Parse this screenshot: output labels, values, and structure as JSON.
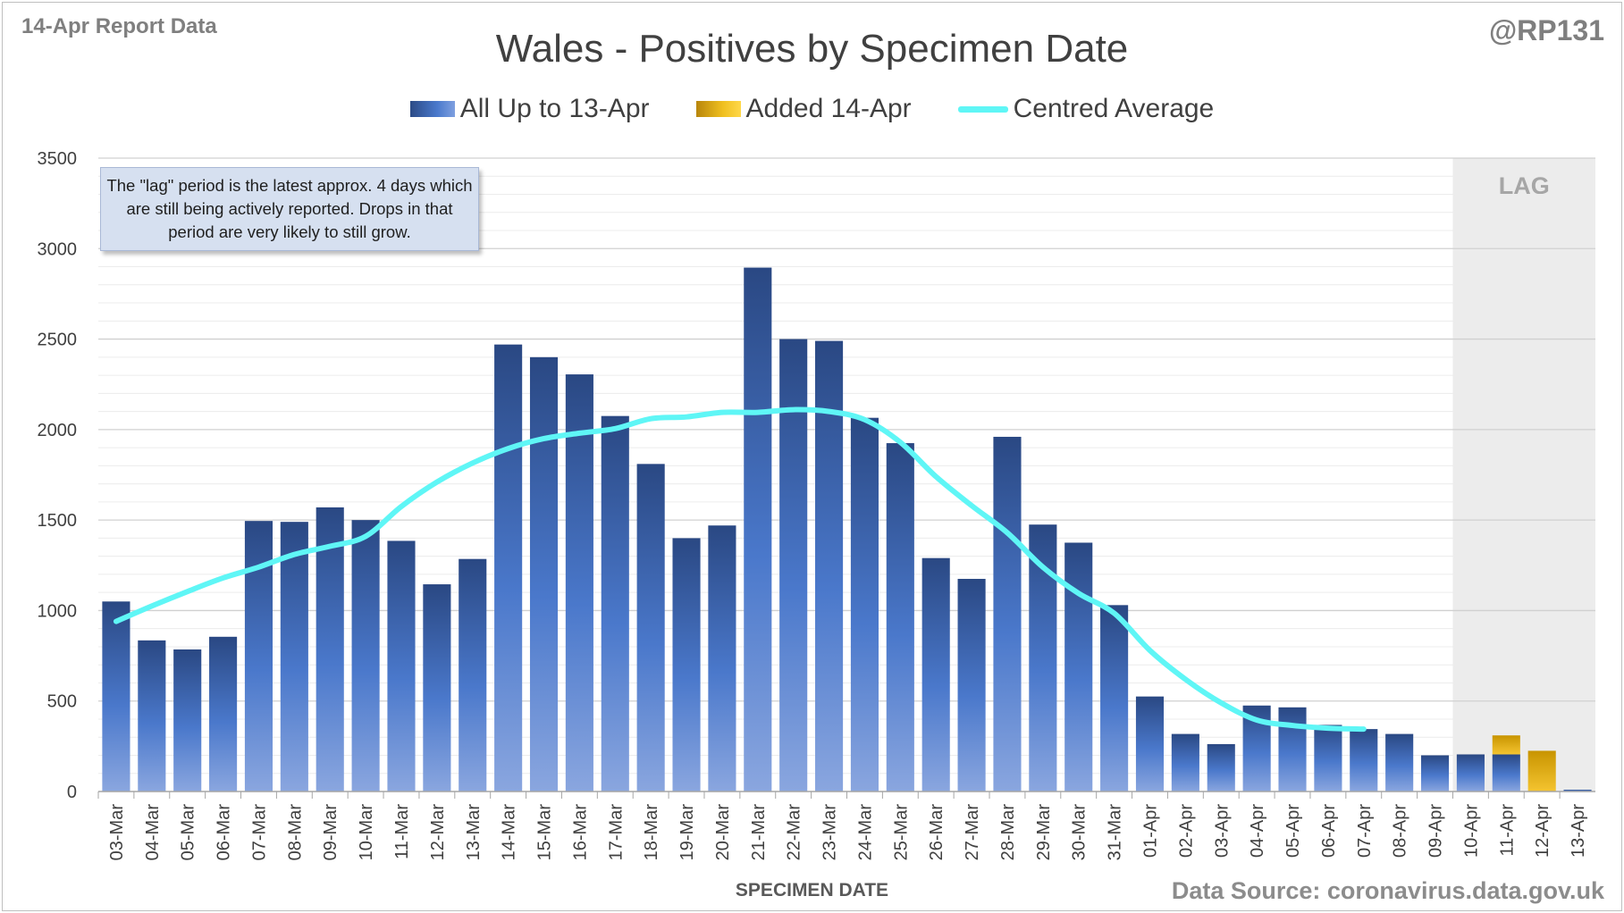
{
  "header": {
    "report_label": "14-Apr Report Data",
    "handle": "@RP131",
    "source": "Data Source: coronavirus.data.gov.uk"
  },
  "legend": {
    "series_1": "All Up to 13-Apr",
    "series_2": "Added 14-Apr",
    "series_3": "Centred Average"
  },
  "note": "The \"lag\" period is the latest approx. 4 days which are still being actively reported.  Drops in that period are very likely to still grow.",
  "colors": {
    "bar_main": "#3a64b4",
    "bar_added": "#e0a800",
    "average_line": "#5ff6f6",
    "lag_shade": "#ececec"
  },
  "chart_data": {
    "type": "bar",
    "title": "Wales - Positives by Specimen Date",
    "xlabel": "SPECIMEN DATE",
    "ylabel": "",
    "ylim": [
      0,
      3500
    ],
    "yticks": [
      0,
      500,
      1000,
      1500,
      2000,
      2500,
      3000,
      3500
    ],
    "grid": true,
    "legend_position": "top-center",
    "lag_label": "LAG",
    "lag_categories": [
      "10-Apr",
      "11-Apr",
      "12-Apr",
      "13-Apr"
    ],
    "categories": [
      "03-Mar",
      "04-Mar",
      "05-Mar",
      "06-Mar",
      "07-Mar",
      "08-Mar",
      "09-Mar",
      "10-Mar",
      "11-Mar",
      "12-Mar",
      "13-Mar",
      "14-Mar",
      "15-Mar",
      "16-Mar",
      "17-Mar",
      "18-Mar",
      "19-Mar",
      "20-Mar",
      "21-Mar",
      "22-Mar",
      "23-Mar",
      "24-Mar",
      "25-Mar",
      "26-Mar",
      "27-Mar",
      "28-Mar",
      "29-Mar",
      "30-Mar",
      "31-Mar",
      "01-Apr",
      "02-Apr",
      "03-Apr",
      "04-Apr",
      "05-Apr",
      "06-Apr",
      "07-Apr",
      "08-Apr",
      "09-Apr",
      "10-Apr",
      "11-Apr",
      "12-Apr",
      "13-Apr"
    ],
    "series": [
      {
        "name": "All Up to 13-Apr",
        "stack": true,
        "values": [
          1050,
          835,
          785,
          855,
          1495,
          1490,
          1570,
          1500,
          1385,
          1145,
          1285,
          2470,
          2400,
          2305,
          2075,
          1810,
          1400,
          1470,
          2895,
          2500,
          2490,
          2065,
          1925,
          1290,
          1175,
          1960,
          1475,
          1375,
          1030,
          525,
          318,
          262,
          475,
          465,
          368,
          345,
          318,
          200,
          205,
          205,
          0,
          10
        ]
      },
      {
        "name": "Added 14-Apr",
        "stack": true,
        "values": [
          0,
          0,
          0,
          0,
          0,
          0,
          0,
          0,
          0,
          0,
          0,
          0,
          0,
          0,
          0,
          0,
          0,
          0,
          0,
          0,
          0,
          0,
          0,
          0,
          0,
          0,
          0,
          0,
          0,
          0,
          0,
          0,
          0,
          0,
          0,
          0,
          0,
          0,
          0,
          105,
          225,
          0
        ]
      },
      {
        "name": "Centred Average",
        "type": "line",
        "values": [
          940,
          1025,
          1105,
          1180,
          1240,
          1310,
          1355,
          1410,
          1575,
          1710,
          1815,
          1895,
          1950,
          1980,
          2005,
          2060,
          2070,
          2095,
          2095,
          2110,
          2100,
          2055,
          1930,
          1740,
          1580,
          1430,
          1240,
          1095,
          985,
          780,
          620,
          490,
          395,
          365,
          350,
          345,
          null,
          null,
          null,
          null,
          null,
          null
        ]
      }
    ]
  }
}
